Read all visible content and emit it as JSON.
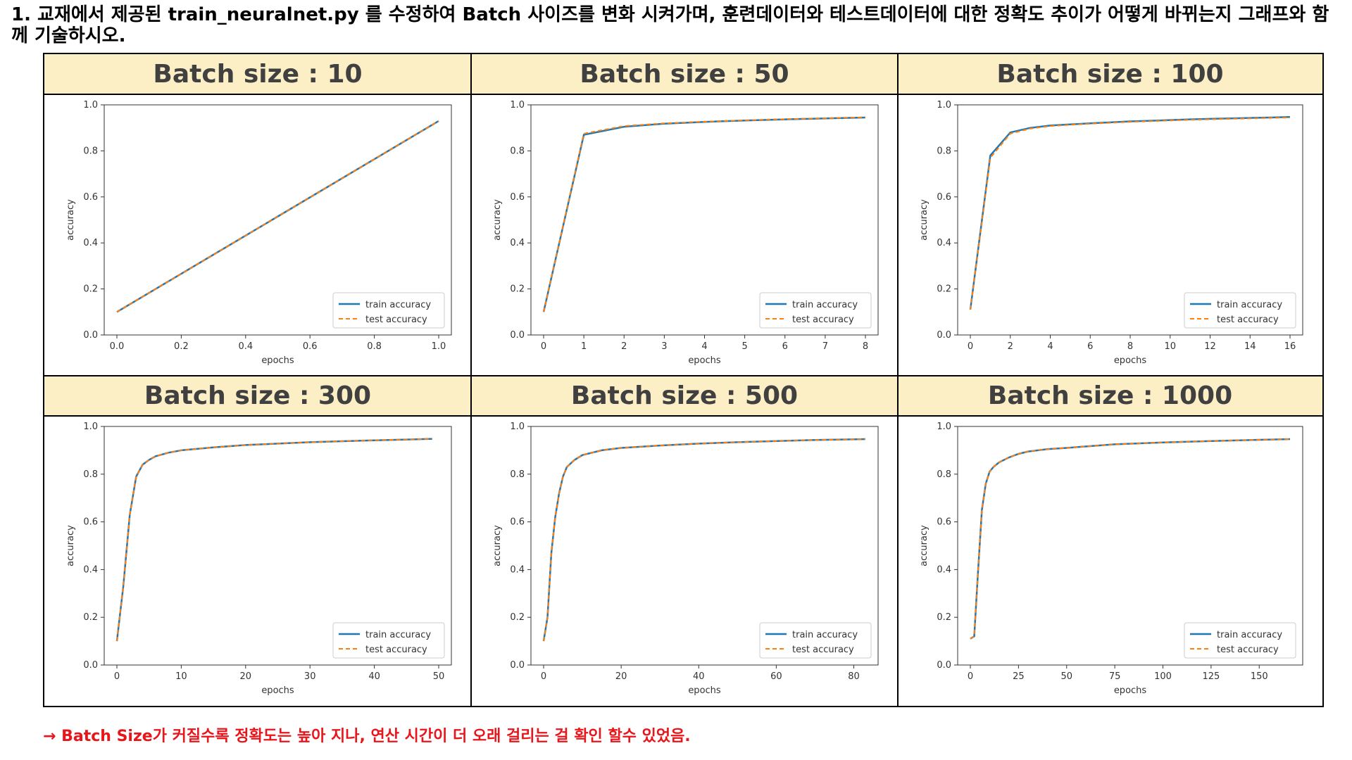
{
  "question": "1. 교재에서 제공된  train_neuralnet.py 를 수정하여  Batch 사이즈를 변화 시켜가며, 훈련데이터와 테스트데이터에 대한  정확도 추이가 어떻게 바뀌는지 그래프와 함께 기술하시오.",
  "conclusion": "→ Batch Size가 커질수록 정확도는 높아 지나, 연산 시간이 더 오래 걸리는 걸 확인 할수 있었음.",
  "colors": {
    "train": "#1f77b4",
    "test": "#ff7f0e",
    "header_bg": "#fcefc6",
    "conclusion": "#e8151b"
  },
  "chart_data": [
    {
      "title": "Batch size : 10",
      "type": "line",
      "xlabel": "epochs",
      "ylabel": "accuracy",
      "xlim": [
        0,
        1
      ],
      "ylim": [
        0,
        1
      ],
      "xticks": [
        "0.0",
        "0.2",
        "0.4",
        "0.6",
        "0.8",
        "1.0"
      ],
      "yticks": [
        "0.0",
        "0.2",
        "0.4",
        "0.6",
        "0.8",
        "1.0"
      ],
      "legend": "lower-right",
      "series": [
        {
          "name": "train accuracy",
          "x": [
            0,
            1
          ],
          "y": [
            0.1,
            0.93
          ]
        },
        {
          "name": "test accuracy",
          "x": [
            0,
            1
          ],
          "y": [
            0.1,
            0.93
          ]
        }
      ]
    },
    {
      "title": "Batch size : 50",
      "type": "line",
      "xlabel": "epochs",
      "ylabel": "accuracy",
      "xlim": [
        0,
        8
      ],
      "ylim": [
        0,
        1
      ],
      "xticks": [
        "0",
        "1",
        "2",
        "3",
        "4",
        "5",
        "6",
        "7",
        "8"
      ],
      "yticks": [
        "0.0",
        "0.2",
        "0.4",
        "0.6",
        "0.8",
        "1.0"
      ],
      "legend": "lower-right",
      "series": [
        {
          "name": "train accuracy",
          "x": [
            0,
            1,
            2,
            3,
            4,
            5,
            6,
            7,
            8
          ],
          "y": [
            0.1,
            0.87,
            0.905,
            0.918,
            0.926,
            0.932,
            0.937,
            0.941,
            0.945
          ]
        },
        {
          "name": "test accuracy",
          "x": [
            0,
            1,
            2,
            3,
            4,
            5,
            6,
            7,
            8
          ],
          "y": [
            0.1,
            0.875,
            0.908,
            0.92,
            0.927,
            0.933,
            0.938,
            0.942,
            0.946
          ]
        }
      ]
    },
    {
      "title": "Batch size : 100",
      "type": "line",
      "xlabel": "epochs",
      "ylabel": "accuracy",
      "xlim": [
        0,
        16
      ],
      "ylim": [
        0,
        1
      ],
      "xticks": [
        "0",
        "2",
        "4",
        "6",
        "8",
        "10",
        "12",
        "14",
        "16"
      ],
      "yticks": [
        "0.0",
        "0.2",
        "0.4",
        "0.6",
        "0.8",
        "1.0"
      ],
      "legend": "lower-right",
      "series": [
        {
          "name": "train accuracy",
          "x": [
            0,
            1,
            2,
            3,
            4,
            5,
            6,
            7,
            8,
            9,
            10,
            11,
            12,
            13,
            14,
            15,
            16
          ],
          "y": [
            0.11,
            0.78,
            0.88,
            0.9,
            0.91,
            0.915,
            0.92,
            0.924,
            0.928,
            0.931,
            0.934,
            0.937,
            0.939,
            0.941,
            0.943,
            0.945,
            0.947
          ]
        },
        {
          "name": "test accuracy",
          "x": [
            0,
            1,
            2,
            3,
            4,
            5,
            6,
            7,
            8,
            9,
            10,
            11,
            12,
            13,
            14,
            15,
            16
          ],
          "y": [
            0.11,
            0.77,
            0.875,
            0.897,
            0.908,
            0.913,
            0.918,
            0.922,
            0.926,
            0.929,
            0.932,
            0.935,
            0.937,
            0.939,
            0.941,
            0.943,
            0.945
          ]
        }
      ]
    },
    {
      "title": "Batch size : 300",
      "type": "line",
      "xlabel": "epochs",
      "ylabel": "accuracy",
      "xlim": [
        0,
        50
      ],
      "ylim": [
        0,
        1
      ],
      "xticks": [
        "0",
        "10",
        "20",
        "30",
        "40",
        "50"
      ],
      "yticks": [
        "0.0",
        "0.2",
        "0.4",
        "0.6",
        "0.8",
        "1.0"
      ],
      "legend": "lower-right",
      "series": [
        {
          "name": "train accuracy",
          "x": [
            0,
            1,
            2,
            3,
            4,
            5,
            6,
            8,
            10,
            15,
            20,
            25,
            30,
            35,
            40,
            45,
            49
          ],
          "y": [
            0.1,
            0.33,
            0.63,
            0.79,
            0.84,
            0.86,
            0.875,
            0.89,
            0.9,
            0.912,
            0.922,
            0.928,
            0.934,
            0.938,
            0.942,
            0.945,
            0.948
          ]
        },
        {
          "name": "test accuracy",
          "x": [
            0,
            1,
            2,
            3,
            4,
            5,
            6,
            8,
            10,
            15,
            20,
            25,
            30,
            35,
            40,
            45,
            49
          ],
          "y": [
            0.1,
            0.33,
            0.63,
            0.79,
            0.84,
            0.86,
            0.875,
            0.89,
            0.9,
            0.912,
            0.922,
            0.928,
            0.934,
            0.938,
            0.942,
            0.945,
            0.948
          ]
        }
      ]
    },
    {
      "title": "Batch size : 500",
      "type": "line",
      "xlabel": "epochs",
      "ylabel": "accuracy",
      "xlim": [
        0,
        83
      ],
      "ylim": [
        0,
        1
      ],
      "xticks": [
        "0",
        "20",
        "40",
        "60",
        "80"
      ],
      "yticks": [
        "0.0",
        "0.2",
        "0.4",
        "0.6",
        "0.8",
        "1.0"
      ],
      "legend": "lower-right",
      "series": [
        {
          "name": "train accuracy",
          "x": [
            0,
            1,
            2,
            3,
            4,
            5,
            6,
            8,
            10,
            15,
            20,
            30,
            40,
            50,
            60,
            70,
            83
          ],
          "y": [
            0.1,
            0.2,
            0.47,
            0.62,
            0.72,
            0.79,
            0.83,
            0.86,
            0.88,
            0.9,
            0.91,
            0.92,
            0.928,
            0.934,
            0.939,
            0.943,
            0.947
          ]
        },
        {
          "name": "test accuracy",
          "x": [
            0,
            1,
            2,
            3,
            4,
            5,
            6,
            8,
            10,
            15,
            20,
            30,
            40,
            50,
            60,
            70,
            83
          ],
          "y": [
            0.1,
            0.2,
            0.47,
            0.62,
            0.72,
            0.79,
            0.83,
            0.86,
            0.88,
            0.9,
            0.91,
            0.92,
            0.928,
            0.934,
            0.939,
            0.943,
            0.947
          ]
        }
      ]
    },
    {
      "title": "Batch size : 1000",
      "type": "line",
      "xlabel": "epochs",
      "ylabel": "accuracy",
      "xlim": [
        0,
        166
      ],
      "ylim": [
        0,
        1
      ],
      "xticks": [
        "0",
        "25",
        "50",
        "75",
        "100",
        "125",
        "150"
      ],
      "yticks": [
        "0.0",
        "0.2",
        "0.4",
        "0.6",
        "0.8",
        "1.0"
      ],
      "legend": "lower-right",
      "series": [
        {
          "name": "train accuracy",
          "x": [
            0,
            2,
            4,
            6,
            8,
            10,
            12,
            15,
            20,
            25,
            30,
            40,
            50,
            75,
            100,
            125,
            150,
            166
          ],
          "y": [
            0.11,
            0.12,
            0.39,
            0.65,
            0.76,
            0.81,
            0.83,
            0.85,
            0.87,
            0.885,
            0.895,
            0.905,
            0.91,
            0.925,
            0.933,
            0.939,
            0.944,
            0.947
          ]
        },
        {
          "name": "test accuracy",
          "x": [
            0,
            2,
            4,
            6,
            8,
            10,
            12,
            15,
            20,
            25,
            30,
            40,
            50,
            75,
            100,
            125,
            150,
            166
          ],
          "y": [
            0.11,
            0.12,
            0.39,
            0.65,
            0.76,
            0.81,
            0.83,
            0.85,
            0.87,
            0.885,
            0.895,
            0.905,
            0.91,
            0.925,
            0.933,
            0.939,
            0.944,
            0.947
          ]
        }
      ]
    }
  ]
}
